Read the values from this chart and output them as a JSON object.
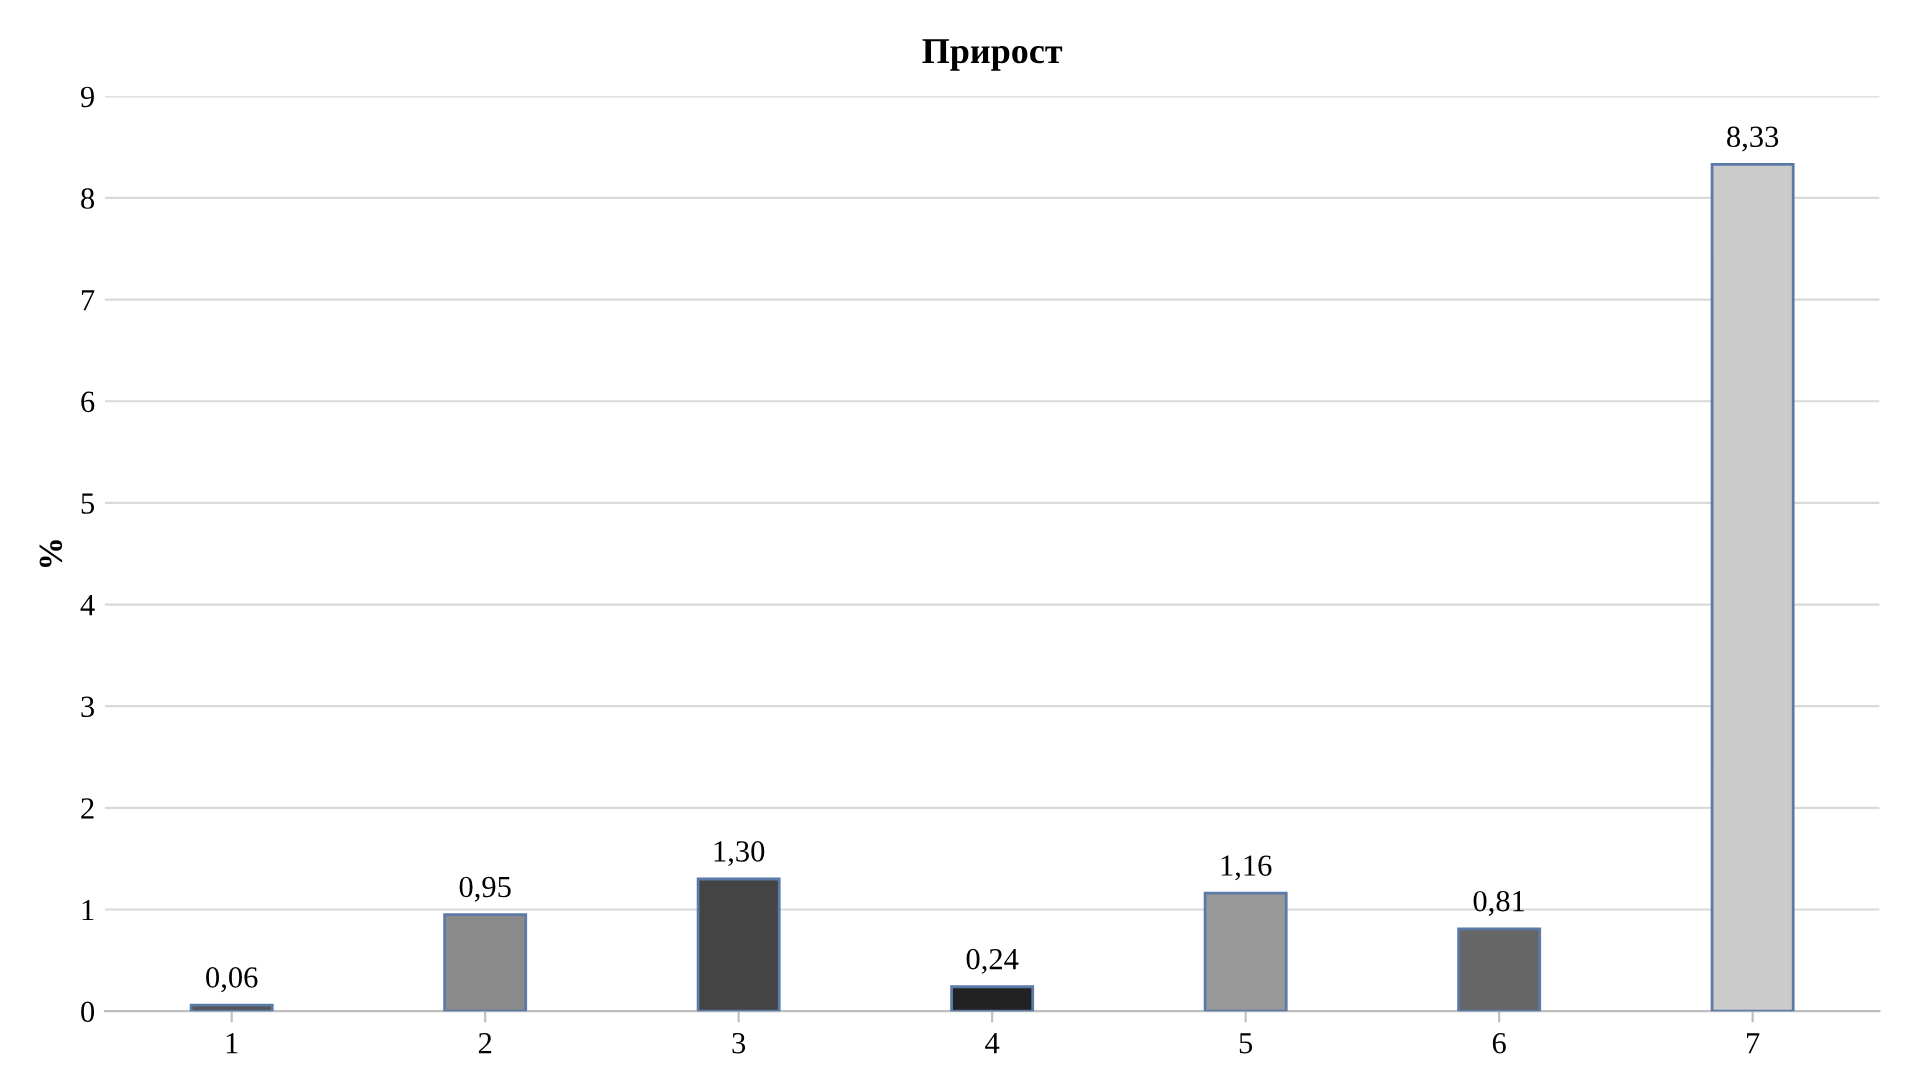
{
  "chart_data": {
    "type": "bar",
    "title": "Прирост",
    "ylabel": "%",
    "categories": [
      "1",
      "2",
      "3",
      "4",
      "5",
      "6",
      "7"
    ],
    "values": [
      0.06,
      0.95,
      1.3,
      0.24,
      1.16,
      0.81,
      8.33
    ],
    "value_labels": [
      "0,06",
      "0,95",
      "1,30",
      "0,24",
      "1,16",
      "0,81",
      "8,33"
    ],
    "colors": [
      "#555555",
      "#8a8a8a",
      "#444444",
      "#222222",
      "#999999",
      "#666666",
      "#cccccc"
    ],
    "ylim": [
      0,
      9
    ],
    "yticks": [
      0,
      1,
      2,
      3,
      4,
      5,
      6,
      7,
      8,
      9
    ],
    "grid": "y"
  }
}
